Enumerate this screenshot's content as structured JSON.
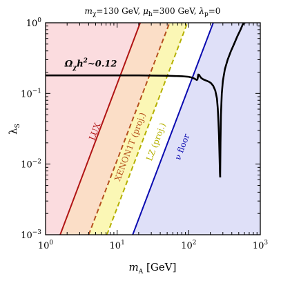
{
  "chart_data": {
    "type": "line",
    "title": "mχ=130 GeV, μh=300 GeV, λp=0",
    "title_parts": [
      {
        "base": "m",
        "sub": "χ",
        "rest": "=130 GeV, "
      },
      {
        "base": "μ",
        "sub": "h",
        "rest": "=300 GeV, "
      },
      {
        "base": "λ",
        "sub": "p",
        "rest": "=0"
      }
    ],
    "xlabel": {
      "base": "m",
      "sub": "A",
      "rest": " [GeV]"
    },
    "ylabel": {
      "base": "λ",
      "sub": "S"
    },
    "x_scale": "log",
    "y_scale": "log",
    "xlim": [
      1,
      1000
    ],
    "ylim": [
      0.001,
      1
    ],
    "x_ticks": [
      {
        "value": 1,
        "base": "10",
        "exp": "0"
      },
      {
        "value": 10,
        "base": "10",
        "exp": "1"
      },
      {
        "value": 100,
        "base": "10",
        "exp": "2"
      },
      {
        "value": 1000,
        "base": "10",
        "exp": "3"
      }
    ],
    "y_ticks": [
      {
        "value": 0.001,
        "base": "10",
        "exp": "−3"
      },
      {
        "value": 0.01,
        "base": "10",
        "exp": "−2"
      },
      {
        "value": 0.1,
        "base": "10",
        "exp": "−1"
      },
      {
        "value": 1,
        "base": "10",
        "exp": "0"
      }
    ],
    "grid": false,
    "regions": [
      {
        "name": "LUX",
        "fill": "#fbdcdf",
        "x_at_ymin": 1.6,
        "x_at_ymax": 21,
        "line_color": "#b01414",
        "dashed": false
      },
      {
        "name": "XENON1T (proj.)",
        "fill": "#fbdec7",
        "x_at_ymin": 4.0,
        "x_at_ymax": 54,
        "line_color": "#b5501e",
        "dashed": true
      },
      {
        "name": "LZ (proj.)",
        "fill": "#fbf7b5",
        "x_at_ymin": 7.2,
        "x_at_ymax": 96,
        "line_color": "#b5b000",
        "dashed": true
      },
      {
        "name": "ν floor",
        "fill": "#dfe0f8",
        "x_at_ymin": 16.5,
        "x_at_ymax": 220,
        "line_color": "#0a0ab0",
        "dashed": false
      }
    ],
    "band_labels": [
      {
        "text": "LUX",
        "color": "#b01414",
        "x": 5.3,
        "y": 0.028
      },
      {
        "text": "XENON1T (proj.)",
        "color": "#b5501e",
        "x": 16.5,
        "y": 0.017
      },
      {
        "text": "LZ (proj.)",
        "color": "#b5b000",
        "x": 38,
        "y": 0.02
      },
      {
        "text": "ν floor",
        "color": "#0a0ab0",
        "x": 88,
        "y": 0.017
      }
    ],
    "series": [
      {
        "name": "Ωχh²~0.12",
        "color": "#000000",
        "segments": [
          {
            "x": [
              1,
              5,
              10,
              20,
              50,
              80,
              100,
              110,
              120,
              130,
              133,
              136,
              140,
              145,
              150,
              160,
              175,
              190,
              205,
              220,
              235,
              248,
              255,
              260,
              265,
              270,
              273,
              275
            ],
            "y": [
              0.18,
              0.18,
              0.18,
              0.18,
              0.178,
              0.175,
              0.172,
              0.168,
              0.162,
              0.155,
              0.16,
              0.185,
              0.183,
              0.172,
              0.165,
              0.158,
              0.152,
              0.147,
              0.14,
              0.128,
              0.11,
              0.085,
              0.06,
              0.04,
              0.025,
              0.012,
              0.0075,
              0.0065
            ]
          },
          {
            "x": [
              275,
              278,
              282,
              290,
              300,
              320,
              350,
              390,
              430,
              480,
              530,
              570,
              600,
              620
            ],
            "y": [
              0.0065,
              0.02,
              0.05,
              0.1,
              0.15,
              0.22,
              0.3,
              0.4,
              0.5,
              0.65,
              0.8,
              0.95,
              1.0,
              1.0
            ]
          }
        ]
      }
    ],
    "annotations": [
      {
        "text": {
          "omega": "Ω",
          "sub": "χ",
          "h": "h",
          "sup": "2",
          "rest": "~0.12"
        },
        "x": 1.85,
        "y": 0.24
      }
    ]
  }
}
